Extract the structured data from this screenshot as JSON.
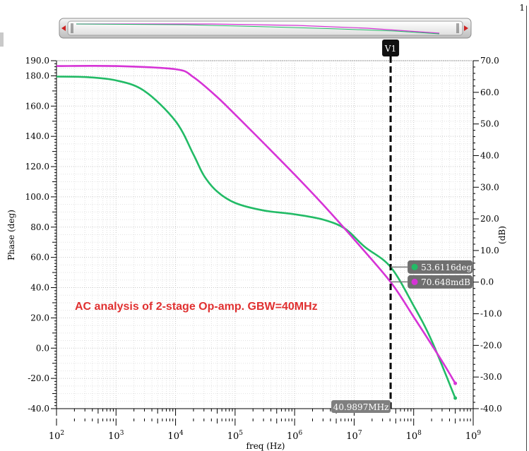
{
  "corner_label": "1",
  "chart_data": {
    "type": "line",
    "xscale": "log",
    "xlabel": "freq (Hz)",
    "ylabel_left": "Phase (deg)",
    "ylabel_right": "(dB)",
    "xlim": [
      100,
      1000000000
    ],
    "ylim_left": [
      -40,
      190
    ],
    "ylim_right": [
      -40,
      70
    ],
    "grid": true,
    "x_tick_exponents": [
      "2",
      "3",
      "4",
      "5",
      "6",
      "7",
      "8",
      "9"
    ],
    "x_tick_base": "10",
    "y_left_ticks": [
      "190.0",
      "180.0",
      "160.0",
      "140.0",
      "120.0",
      "100.0",
      "80.0",
      "60.0",
      "40.0",
      "20.0",
      "0.0",
      "-20.0",
      "-40.0"
    ],
    "y_right_ticks": [
      "70.0",
      "60.0",
      "50.0",
      "40.0",
      "30.0",
      "20.0",
      "10.0",
      "0.0",
      "-10.0",
      "-20.0",
      "-30.0",
      "-40.0"
    ],
    "annotation": "AC analysis of 2-stage Op-amp. GBW=40MHz",
    "series": [
      {
        "axis": "left",
        "color": "#22bb66",
        "x": [
          100,
          300,
          1000,
          3000,
          10000,
          20000,
          30000,
          50000,
          100000,
          300000,
          1000000,
          3000000,
          7000000,
          15000000,
          41000000,
          100000000,
          200000000,
          500000000
        ],
        "y": [
          179.5,
          179.2,
          177,
          170,
          150,
          128,
          114,
          103.5,
          96,
          91,
          88.5,
          85,
          79,
          67,
          53.6,
          28,
          5,
          -33
        ]
      },
      {
        "axis": "right",
        "color": "#d633d6",
        "x": [
          100,
          1000,
          10000,
          20000,
          50000,
          100000,
          300000,
          1000000,
          3000000,
          10000000,
          41000000,
          100000000,
          300000000,
          500000000
        ],
        "y": [
          68.3,
          68.3,
          67.3,
          64.8,
          58.5,
          53,
          44,
          34,
          24.5,
          13.5,
          0,
          -11,
          -25,
          -32
        ]
      }
    ],
    "cursor": {
      "label": "V1",
      "x": 40989700,
      "x_readout": "40.9897MHz"
    },
    "cursor_readouts": [
      {
        "text": "53.6116deg",
        "color": "#22bb66",
        "value": 53.6116,
        "axis": "left"
      },
      {
        "text": "70.648mdB",
        "color": "#d633d6",
        "value": 0.070648,
        "axis": "right"
      }
    ]
  }
}
